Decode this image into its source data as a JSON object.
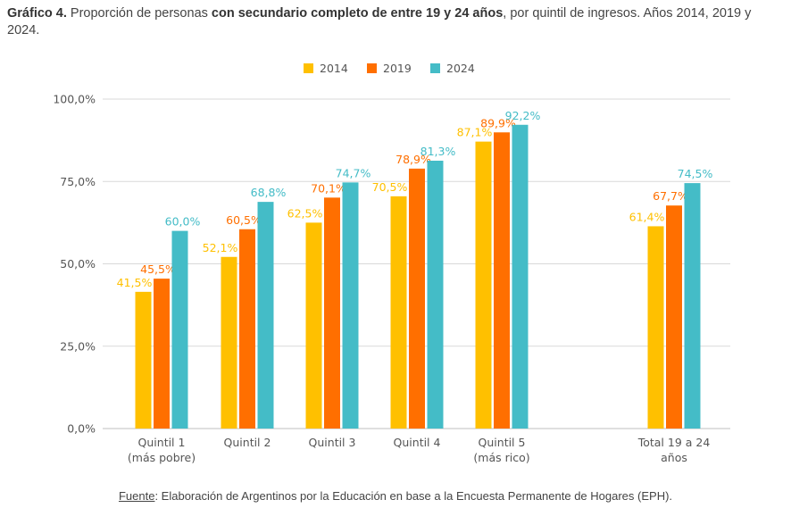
{
  "title": {
    "label": "Gráfico 4.",
    "pre": "Proporción de personas",
    "bold": "con secundario completo de entre 19 y 24 años",
    "post": ", por quintil de ingresos. Años 2014, 2019 y 2024."
  },
  "source": {
    "label": "Fuente",
    "text": ": Elaboración de Argentinos por la Educación en base a la Encuesta Permanente de Hogares (EPH)."
  },
  "chart_data": {
    "type": "bar",
    "title": "Proporción de personas con secundario completo de entre 19 y 24 años, por quintil de ingresos. Años 2014, 2019 y 2024.",
    "xlabel": "",
    "ylabel": "",
    "ylim": [
      0,
      100
    ],
    "yticks": [
      "0,0%",
      "25,0%",
      "50,0%",
      "75,0%",
      "100,0%"
    ],
    "grid": true,
    "legend_position": "top",
    "categories": [
      [
        "Quintil 1",
        "(más pobre)"
      ],
      [
        "Quintil 2"
      ],
      [
        "Quintil 3"
      ],
      [
        "Quintil 4"
      ],
      [
        "Quintil 5",
        "(más rico)"
      ],
      [
        "Total 19 a 24",
        "años"
      ]
    ],
    "series": [
      {
        "name": "2014",
        "color": "#FFC000",
        "values": [
          41.5,
          52.1,
          62.5,
          70.5,
          87.1,
          61.4
        ],
        "labels": [
          "41,5%",
          "52,1%",
          "62,5%",
          "70,5%",
          "87,1%",
          "61,4%"
        ]
      },
      {
        "name": "2019",
        "color": "#FF6F00",
        "values": [
          45.5,
          60.5,
          70.1,
          78.9,
          89.9,
          67.7
        ],
        "labels": [
          "45,5%",
          "60,5%",
          "70,1%",
          "78,9%",
          "89,9%",
          "67,7%"
        ]
      },
      {
        "name": "2024",
        "color": "#44BCC7",
        "values": [
          60.0,
          68.8,
          74.7,
          81.3,
          92.2,
          74.5
        ],
        "labels": [
          "60,0%",
          "68,8%",
          "74,7%",
          "81,3%",
          "92,2%",
          "74,5%"
        ]
      }
    ]
  }
}
